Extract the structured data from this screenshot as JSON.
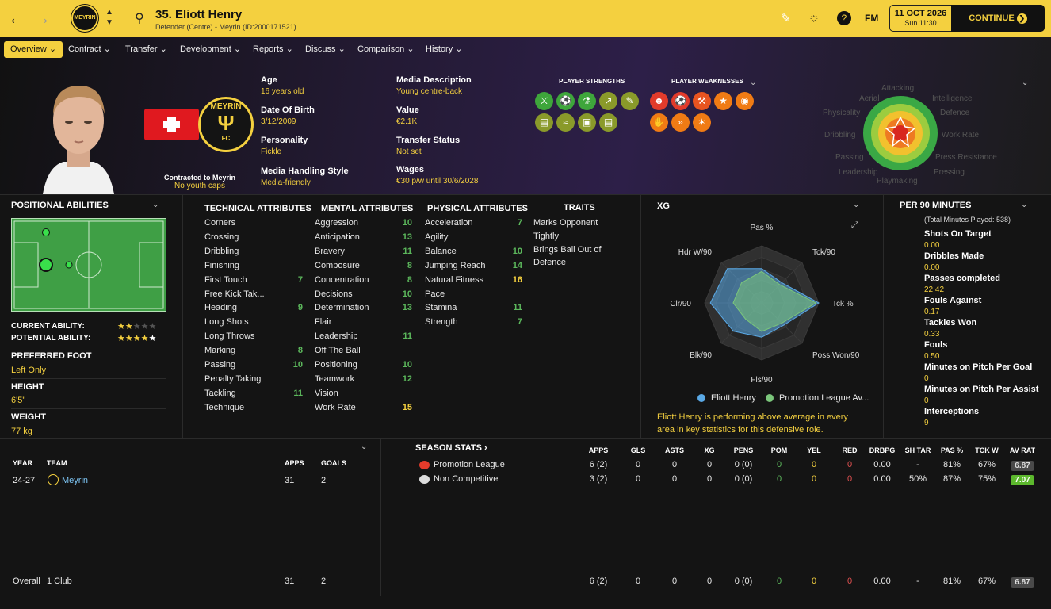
{
  "header": {
    "number_name": "35. Eliott Henry",
    "subtitle": "Defender (Centre) - Meyrin (ID:2000171521)",
    "date": "11 OCT 2026",
    "time": "Sun 11:30",
    "continue": "CONTINUE",
    "fm": "FM"
  },
  "tabs": [
    "Overview",
    "Contract",
    "Transfer",
    "Development",
    "Reports",
    "Discuss",
    "Comparison",
    "History"
  ],
  "bio": {
    "contract_label": "Contracted to Meyrin",
    "caps": "No youth caps",
    "age_l": "Age",
    "age_v": "16 years old",
    "dob_l": "Date Of Birth",
    "dob_v": "3/12/2009",
    "pers_l": "Personality",
    "pers_v": "Fickle",
    "media_l": "Media Handling Style",
    "media_v": "Media-friendly",
    "desc_l": "Media Description",
    "desc_v": "Young centre-back",
    "value_l": "Value",
    "value_v": "€2.1K",
    "ts_l": "Transfer Status",
    "ts_v": "Not set",
    "wages_l": "Wages",
    "wages_v": "€30 p/w until 30/6/2028",
    "strengths": "PLAYER STRENGTHS",
    "weaknesses": "PLAYER WEAKNESSES",
    "club_badge": "MEYRIN"
  },
  "attr_wheel_labels": [
    "Attacking",
    "Intelligence",
    "Aerial",
    "Defence",
    "Physicality",
    "Work Rate",
    "Dribbling",
    "Press Resistance",
    "Passing",
    "Playmaking",
    "Leadership",
    "Pressing"
  ],
  "positional": {
    "title": "POSITIONAL ABILITIES",
    "ca_l": "CURRENT ABILITY:",
    "pa_l": "POTENTIAL ABILITY:",
    "foot_l": "PREFERRED FOOT",
    "foot_v": "Left Only",
    "height_l": "HEIGHT",
    "height_v": "6'5\"",
    "weight_l": "WEIGHT",
    "weight_v": "77 kg",
    "ca_stars": 2,
    "pa_stars": 4.5
  },
  "attributes": {
    "tech_title": "TECHNICAL ATTRIBUTES",
    "ment_title": "MENTAL ATTRIBUTES",
    "phys_title": "PHYSICAL ATTRIBUTES",
    "traits_title": "TRAITS",
    "technical": [
      [
        "Corners",
        ""
      ],
      [
        "Crossing",
        ""
      ],
      [
        "Dribbling",
        ""
      ],
      [
        "Finishing",
        ""
      ],
      [
        "First Touch",
        "7"
      ],
      [
        "Free Kick Tak...",
        ""
      ],
      [
        "Heading",
        "9"
      ],
      [
        "Long Shots",
        ""
      ],
      [
        "Long Throws",
        ""
      ],
      [
        "Marking",
        "8"
      ],
      [
        "Passing",
        "10"
      ],
      [
        "Penalty Taking",
        ""
      ],
      [
        "Tackling",
        "11"
      ],
      [
        "Technique",
        ""
      ]
    ],
    "mental": [
      [
        "Aggression",
        "10"
      ],
      [
        "Anticipation",
        "13"
      ],
      [
        "Bravery",
        "11"
      ],
      [
        "Composure",
        "8"
      ],
      [
        "Concentration",
        "8"
      ],
      [
        "Decisions",
        "10"
      ],
      [
        "Determination",
        "13"
      ],
      [
        "Flair",
        ""
      ],
      [
        "Leadership",
        "11"
      ],
      [
        "Off The Ball",
        ""
      ],
      [
        "Positioning",
        "10"
      ],
      [
        "Teamwork",
        "12"
      ],
      [
        "Vision",
        ""
      ],
      [
        "Work Rate",
        "15"
      ]
    ],
    "physical": [
      [
        "Acceleration",
        "7"
      ],
      [
        "Agility",
        ""
      ],
      [
        "Balance",
        "10"
      ],
      [
        "Jumping Reach",
        "14"
      ],
      [
        "Natural Fitness",
        "16"
      ],
      [
        "Pace",
        ""
      ],
      [
        "Stamina",
        "11"
      ],
      [
        "Strength",
        "7"
      ]
    ],
    "traits": [
      "Marks Opponent",
      "Tightly",
      "Brings Ball Out of",
      "Defence"
    ]
  },
  "xg": {
    "title": "XG",
    "labels": [
      "Pas %",
      "Tck/90",
      "Tck %",
      "Poss Won/90",
      "Fls/90",
      "Blk/90",
      "Clr/90",
      "Hdr W/90"
    ],
    "player": [
      0.6,
      0.5,
      1.0,
      0.55,
      0.6,
      0.7,
      0.9,
      0.85
    ],
    "league": [
      0.55,
      0.45,
      0.95,
      0.5,
      0.5,
      0.4,
      0.5,
      0.5
    ],
    "legend_player": "Eliott Henry",
    "legend_league": "Promotion League Av...",
    "note": "Eliott Henry is performing above average in every area in key statistics for this defensive role.",
    "player_color": "#5aa9e6",
    "league_color": "#7bc67b"
  },
  "per90": {
    "title": "PER 90 MINUTES",
    "total": "(Total Minutes Played: 538)",
    "rows": [
      [
        "Shots On Target",
        "0.00"
      ],
      [
        "Dribbles Made",
        "0.00"
      ],
      [
        "Passes completed",
        "22.42"
      ],
      [
        "Fouls Against",
        "0.17"
      ],
      [
        "Tackles Won",
        "0.33"
      ],
      [
        "Fouls",
        "0.50"
      ],
      [
        "Minutes on Pitch Per Goal",
        "0"
      ],
      [
        "Minutes on Pitch Per Assist",
        "0"
      ],
      [
        "Interceptions",
        "9"
      ]
    ]
  },
  "career": {
    "h_year": "YEAR",
    "h_team": "TEAM",
    "h_apps": "APPS",
    "h_goals": "GOALS",
    "year": "24-27",
    "team": "Meyrin",
    "apps": "31",
    "goals": "2",
    "overall": "Overall",
    "clubs": "1 Club",
    "o_apps": "31",
    "o_goals": "2"
  },
  "season": {
    "title": "SEASON STATS",
    "cols": [
      "APPS",
      "GLS",
      "ASTS",
      "XG",
      "PENS",
      "POM",
      "YEL",
      "RED",
      "DRBPG",
      "SH TAR",
      "PAS %",
      "TCK W",
      "AV RAT"
    ],
    "rows": [
      {
        "comp": "Promotion League",
        "vals": [
          "6 (2)",
          "0",
          "0",
          "0",
          "0 (0)",
          "0",
          "0",
          "0",
          "0.00",
          "-",
          "81%",
          "67%",
          "6.87"
        ]
      },
      {
        "comp": "Non Competitive",
        "vals": [
          "3 (2)",
          "0",
          "0",
          "0",
          "0 (0)",
          "0",
          "0",
          "0",
          "0.00",
          "50%",
          "87%",
          "75%",
          "7.07"
        ]
      }
    ],
    "total": [
      "6 (2)",
      "0",
      "0",
      "0",
      "0 (0)",
      "0",
      "0",
      "0",
      "0.00",
      "-",
      "81%",
      "67%",
      "6.87"
    ]
  }
}
